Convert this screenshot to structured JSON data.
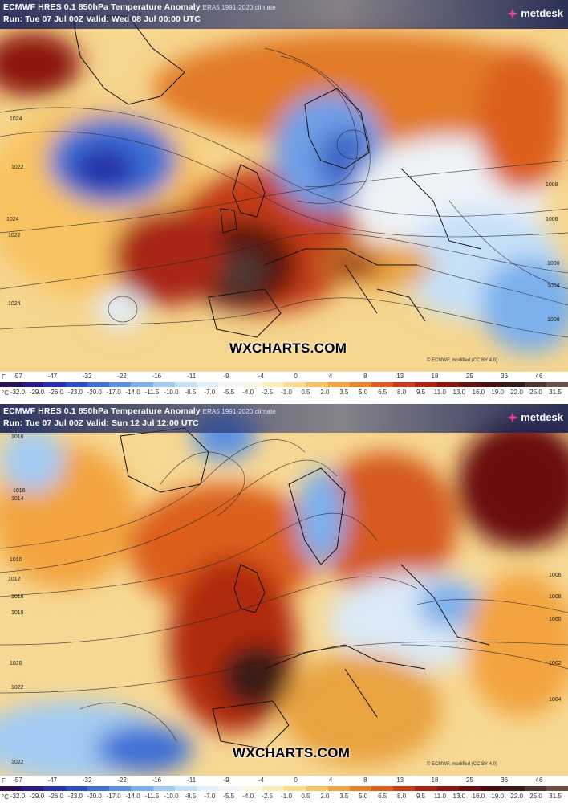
{
  "panels": [
    {
      "title": "ECMWF HRES 0.1 850hPa Temperature Anomaly",
      "climate": "ERA5 1991-2020 climate",
      "run": "Run: Tue 07 Jul 00Z Valid: Wed 08 Jul 00:00 UTC",
      "brand": "metdesk",
      "watermark": "WXCHARTS.COM",
      "credit": "© ECMWF, modified (CC BY 4.0)",
      "isobar_labels": [
        "1024",
        "1022",
        "1024",
        "1022",
        "1024",
        "1008",
        "1006",
        "1000",
        "1004",
        "1008"
      ]
    },
    {
      "title": "ECMWF HRES 0.1 850hPa Temperature Anomaly",
      "climate": "ERA5 1991-2020 climate",
      "run": "Run: Tue 07 Jul 00Z Valid: Sun 12 Jul 12:00 UTC",
      "brand": "metdesk",
      "watermark": "WXCHARTS.COM",
      "credit": "© ECMWF, modified (CC BY 4.0)",
      "isobar_labels": [
        "1016",
        "1016",
        "1014",
        "1012",
        "1010",
        "1016",
        "1018",
        "1020",
        "1022",
        "1022",
        "1006",
        "1008",
        "1000",
        "1002",
        "1004"
      ]
    }
  ],
  "scale": {
    "f_unit": "F",
    "c_unit": "°C",
    "f_ticks": [
      "-57",
      "-47",
      "-32",
      "-22",
      "-16",
      "-11",
      "-9",
      "-4",
      "0",
      "4",
      "8",
      "13",
      "18",
      "25",
      "36",
      "46"
    ],
    "c_ticks": [
      "-32.0",
      "-29.0",
      "-26.0",
      "-23.0",
      "-20.0",
      "-17.0",
      "-14.0",
      "-11.5",
      "-10.0",
      "-8.5",
      "-7.0",
      "-5.5",
      "-4.0",
      "-2.5",
      "-1.0",
      "0.5",
      "2.0",
      "3.5",
      "5.0",
      "6.5",
      "8.0",
      "9.5",
      "11.0",
      "13.0",
      "16.0",
      "19.0",
      "22.0",
      "25.0",
      "31.5"
    ],
    "colors": [
      "#2d0f57",
      "#2a1a8a",
      "#2632b0",
      "#2a4fc7",
      "#3d70d6",
      "#5a91e3",
      "#7cb0ec",
      "#a2cbf3",
      "#c6e0f8",
      "#e2eef9",
      "#f3f6f9",
      "#fbf7e6",
      "#fcecb8",
      "#fbdb8a",
      "#f8c260",
      "#f3a43f",
      "#ea8228",
      "#dc5e1a",
      "#c73e12",
      "#ab2410",
      "#8c160e",
      "#6b1010",
      "#4e0f10",
      "#3a1a18",
      "#50352f",
      "#6e5049"
    ]
  }
}
